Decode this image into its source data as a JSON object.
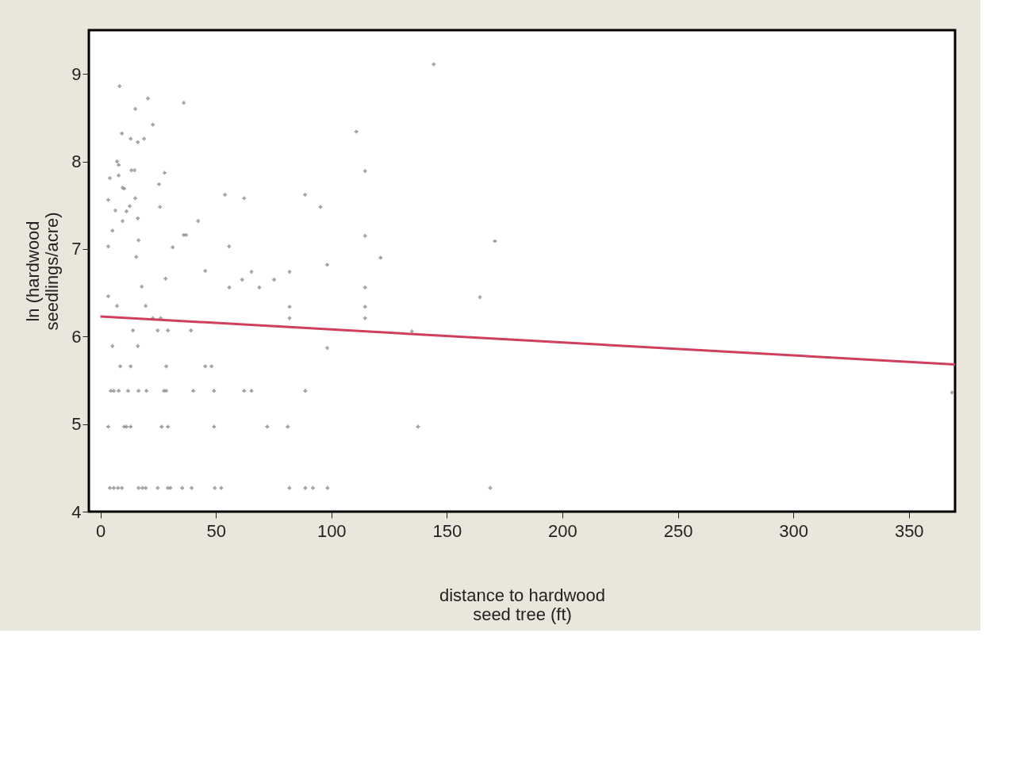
{
  "chart_data": {
    "type": "scatter",
    "xlabel": "distance to hardwood seed tree (ft)",
    "ylabel": "ln (hardwood seedlings/acre)",
    "xlim": [
      -5,
      370
    ],
    "xticks": [
      0,
      50,
      100,
      150,
      200,
      250,
      300,
      350
    ],
    "ylim": [
      4,
      9.5
    ],
    "yticks": [
      4,
      5,
      6,
      7,
      8,
      9
    ],
    "grid": false,
    "series": [
      {
        "color": "#8a8a8a",
        "marker": "cross",
        "x": [
          8.3,
          15.1,
          20.6,
          36.1,
          9.3,
          13.1,
          16.2,
          18.9,
          22.7,
          7.2,
          7.9,
          13.4,
          14.8,
          4.1,
          7.9,
          27.8,
          9.6,
          10.3,
          15.1,
          3.4,
          25.4,
          25.8,
          12.7,
          11.3,
          6.5,
          16.2,
          9.6,
          5.2,
          16.5,
          3.4,
          15.5,
          31.3,
          36.1,
          37.1,
          42.3,
          28.2,
          17.9,
          45.4,
          3.4,
          7.2,
          19.6,
          22.7,
          26.1,
          14.1,
          24.8,
          29.2,
          39.2,
          5.2,
          16.2,
          8.6,
          13.1,
          28.5,
          45.4,
          48.1,
          4.5,
          5.8,
          7.9,
          12.0,
          16.5,
          19.9,
          27.5,
          28.5,
          40.2,
          49.2,
          62.2,
          65.4,
          88.7,
          368.7,
          3.4,
          10.3,
          11.3,
          13.1,
          26.5,
          29.2,
          49.2,
          72.2,
          81.1,
          137.5,
          4.1,
          5.8,
          7.6,
          9.3,
          16.5,
          18.2,
          19.6,
          24.8,
          29.2,
          30.3,
          35.4,
          39.5,
          49.5,
          52.3,
          81.8,
          88.7,
          92.0,
          98.3,
          168.8,
          53.9,
          62.2,
          88.6,
          95.3,
          110.8,
          114.6,
          114.6,
          55.7,
          121.3,
          98.2,
          65.4,
          81.9,
          61.4,
          75.2,
          55.8,
          68.8,
          114.6,
          81.9,
          114.6,
          81.9,
          114.6,
          134.9,
          98.2,
          144.3,
          170.8,
          164.3
        ],
        "values": [
          8.86,
          8.6,
          8.72,
          8.67,
          8.32,
          8.26,
          8.22,
          8.26,
          8.42,
          8.0,
          7.96,
          7.9,
          7.9,
          7.81,
          7.84,
          7.87,
          7.7,
          7.69,
          7.58,
          7.56,
          7.74,
          7.48,
          7.49,
          7.43,
          7.44,
          7.35,
          7.32,
          7.21,
          7.1,
          7.03,
          6.91,
          7.02,
          7.16,
          7.16,
          7.32,
          6.66,
          6.57,
          6.75,
          6.46,
          6.35,
          6.35,
          6.21,
          6.21,
          6.07,
          6.07,
          6.07,
          6.07,
          5.89,
          5.89,
          5.66,
          5.66,
          5.66,
          5.66,
          5.66,
          5.38,
          5.38,
          5.38,
          5.38,
          5.38,
          5.38,
          5.38,
          5.38,
          5.38,
          5.38,
          5.38,
          5.38,
          5.38,
          5.36,
          4.97,
          4.97,
          4.97,
          4.97,
          4.97,
          4.97,
          4.97,
          4.97,
          4.97,
          4.97,
          4.27,
          4.27,
          4.27,
          4.27,
          4.27,
          4.27,
          4.27,
          4.27,
          4.27,
          4.27,
          4.27,
          4.27,
          4.27,
          4.27,
          4.27,
          4.27,
          4.27,
          4.27,
          4.27,
          7.62,
          7.58,
          7.62,
          7.48,
          8.34,
          7.89,
          7.15,
          7.03,
          6.9,
          6.82,
          6.74,
          6.74,
          6.65,
          6.65,
          6.56,
          6.56,
          6.56,
          6.34,
          6.34,
          6.21,
          6.21,
          6.06,
          5.87,
          9.11,
          7.09,
          6.45
        ]
      },
      {
        "type": "line",
        "color": "#d0405e",
        "x": [
          0,
          370
        ],
        "values": [
          6.23,
          5.68
        ]
      }
    ]
  }
}
